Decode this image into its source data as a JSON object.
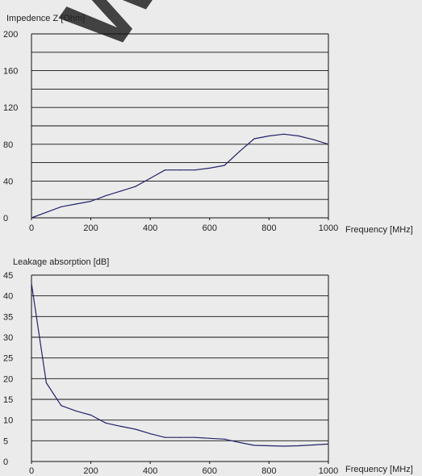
{
  "watermark": {
    "text": "W.05.1395"
  },
  "chart_data": [
    {
      "type": "line",
      "ylabel": "Impedence Z [Ohm]",
      "xlabel": "Frequency [MHz]",
      "xlim": [
        0,
        1000
      ],
      "ylim": [
        0,
        200
      ],
      "xticks": [
        "0",
        "200",
        "400",
        "600",
        "800",
        "1000"
      ],
      "yticks": [
        "0",
        "40",
        "80",
        "120",
        "160",
        "200"
      ],
      "grid": true,
      "series": [
        {
          "color": "#23236b",
          "x": [
            0,
            50,
            100,
            150,
            200,
            250,
            300,
            350,
            400,
            450,
            500,
            550,
            600,
            650,
            700,
            750,
            800,
            850,
            900,
            950,
            1000
          ],
          "y": [
            0,
            6,
            12,
            15,
            18,
            24,
            29,
            34,
            43,
            52,
            52,
            52,
            54,
            57,
            72,
            86,
            89,
            91,
            89,
            85,
            80
          ]
        }
      ]
    },
    {
      "type": "line",
      "ylabel": "Leakage absorption [dB]",
      "xlabel": "Frequency [MHz]",
      "xlim": [
        0,
        1000
      ],
      "ylim": [
        0,
        45
      ],
      "xticks": [
        "0",
        "200",
        "400",
        "600",
        "800",
        "1000"
      ],
      "yticks": [
        "0",
        "5",
        "10",
        "15",
        "20",
        "25",
        "30",
        "35",
        "40",
        "45"
      ],
      "grid": true,
      "series": [
        {
          "color": "#23236b",
          "x": [
            0,
            50,
            100,
            150,
            200,
            250,
            300,
            350,
            400,
            450,
            500,
            550,
            600,
            650,
            700,
            750,
            800,
            850,
            900,
            950,
            1000
          ],
          "y": [
            43,
            19,
            13.5,
            12.2,
            11.2,
            9.3,
            8.5,
            7.8,
            6.7,
            5.8,
            5.8,
            5.8,
            5.6,
            5.4,
            4.6,
            3.9,
            3.8,
            3.7,
            3.8,
            4.0,
            4.2
          ]
        }
      ]
    }
  ]
}
